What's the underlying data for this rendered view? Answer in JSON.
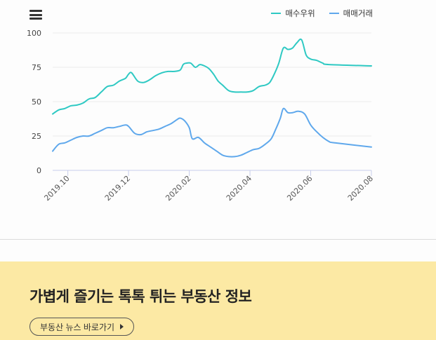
{
  "colors": {
    "buy_index": "#2ec9c3",
    "trade_volume": "#5fa8ec",
    "banner_bg": "#fce9a4"
  },
  "chart_data": {
    "type": "line",
    "y_ticks": [
      "100",
      "75",
      "50",
      "25",
      "0"
    ],
    "ylim": [
      0,
      100
    ],
    "x_ticks": [
      "2019.10",
      "2019.12",
      "2020.02",
      "2020.04",
      "2020.06",
      "2020.08"
    ],
    "x_tick_positions": [
      1,
      3,
      5,
      7,
      9,
      11
    ],
    "xlim": [
      0.5,
      11.0
    ],
    "series": [
      {
        "name": "매수우위",
        "color": "#2ec9c3",
        "points": [
          [
            0.5,
            41
          ],
          [
            0.7,
            44
          ],
          [
            0.9,
            45
          ],
          [
            1.1,
            47
          ],
          [
            1.3,
            47.5
          ],
          [
            1.5,
            49
          ],
          [
            1.7,
            52
          ],
          [
            1.9,
            53
          ],
          [
            2.1,
            57
          ],
          [
            2.3,
            61
          ],
          [
            2.5,
            62
          ],
          [
            2.7,
            65
          ],
          [
            2.9,
            67
          ],
          [
            3.0,
            70
          ],
          [
            3.1,
            71
          ],
          [
            3.3,
            65
          ],
          [
            3.5,
            64
          ],
          [
            3.7,
            66
          ],
          [
            3.9,
            69
          ],
          [
            4.1,
            71
          ],
          [
            4.3,
            72
          ],
          [
            4.5,
            72
          ],
          [
            4.7,
            73
          ],
          [
            4.8,
            77
          ],
          [
            4.9,
            78
          ],
          [
            5.05,
            78
          ],
          [
            5.2,
            75
          ],
          [
            5.35,
            77
          ],
          [
            5.5,
            76
          ],
          [
            5.65,
            74
          ],
          [
            5.8,
            70
          ],
          [
            5.95,
            65
          ],
          [
            6.1,
            62
          ],
          [
            6.3,
            58
          ],
          [
            6.5,
            57
          ],
          [
            6.7,
            57
          ],
          [
            6.9,
            57
          ],
          [
            7.1,
            58
          ],
          [
            7.3,
            61
          ],
          [
            7.5,
            62
          ],
          [
            7.65,
            64
          ],
          [
            7.8,
            70
          ],
          [
            7.95,
            78
          ],
          [
            8.1,
            89
          ],
          [
            8.25,
            88
          ],
          [
            8.4,
            89
          ],
          [
            8.55,
            93
          ],
          [
            8.7,
            95
          ],
          [
            8.85,
            84
          ],
          [
            9.0,
            81
          ],
          [
            9.2,
            80
          ],
          [
            9.4,
            78
          ],
          [
            9.6,
            77
          ],
          [
            11.0,
            76
          ]
        ]
      },
      {
        "name": "매매거래",
        "color": "#5fa8ec",
        "points": [
          [
            0.5,
            14
          ],
          [
            0.7,
            19
          ],
          [
            0.9,
            20
          ],
          [
            1.1,
            22
          ],
          [
            1.3,
            24
          ],
          [
            1.5,
            25
          ],
          [
            1.7,
            25
          ],
          [
            1.9,
            27
          ],
          [
            2.1,
            29
          ],
          [
            2.3,
            31
          ],
          [
            2.5,
            31
          ],
          [
            2.7,
            32
          ],
          [
            2.9,
            33
          ],
          [
            3.0,
            32
          ],
          [
            3.2,
            27
          ],
          [
            3.4,
            26
          ],
          [
            3.6,
            28
          ],
          [
            3.8,
            29
          ],
          [
            4.0,
            30
          ],
          [
            4.2,
            32
          ],
          [
            4.4,
            34
          ],
          [
            4.6,
            37
          ],
          [
            4.7,
            38
          ],
          [
            4.85,
            36
          ],
          [
            5.0,
            31
          ],
          [
            5.1,
            23
          ],
          [
            5.3,
            24
          ],
          [
            5.5,
            20
          ],
          [
            5.7,
            17
          ],
          [
            5.9,
            14
          ],
          [
            6.1,
            11
          ],
          [
            6.3,
            10
          ],
          [
            6.5,
            10
          ],
          [
            6.7,
            11
          ],
          [
            6.9,
            13
          ],
          [
            7.1,
            15
          ],
          [
            7.3,
            16
          ],
          [
            7.5,
            19
          ],
          [
            7.7,
            23
          ],
          [
            7.85,
            30
          ],
          [
            8.0,
            38
          ],
          [
            8.1,
            45
          ],
          [
            8.25,
            42
          ],
          [
            8.4,
            42
          ],
          [
            8.6,
            43
          ],
          [
            8.8,
            41
          ],
          [
            9.0,
            33
          ],
          [
            9.2,
            28
          ],
          [
            9.4,
            24
          ],
          [
            9.6,
            21
          ],
          [
            9.8,
            20
          ],
          [
            11.0,
            17
          ]
        ]
      }
    ]
  },
  "chart_menu_label": "차트 메뉴",
  "news": {
    "title": "가볍게 즐기는 톡톡 튀는 부동산 정보",
    "button_label": "부동산 뉴스 바로가기"
  }
}
